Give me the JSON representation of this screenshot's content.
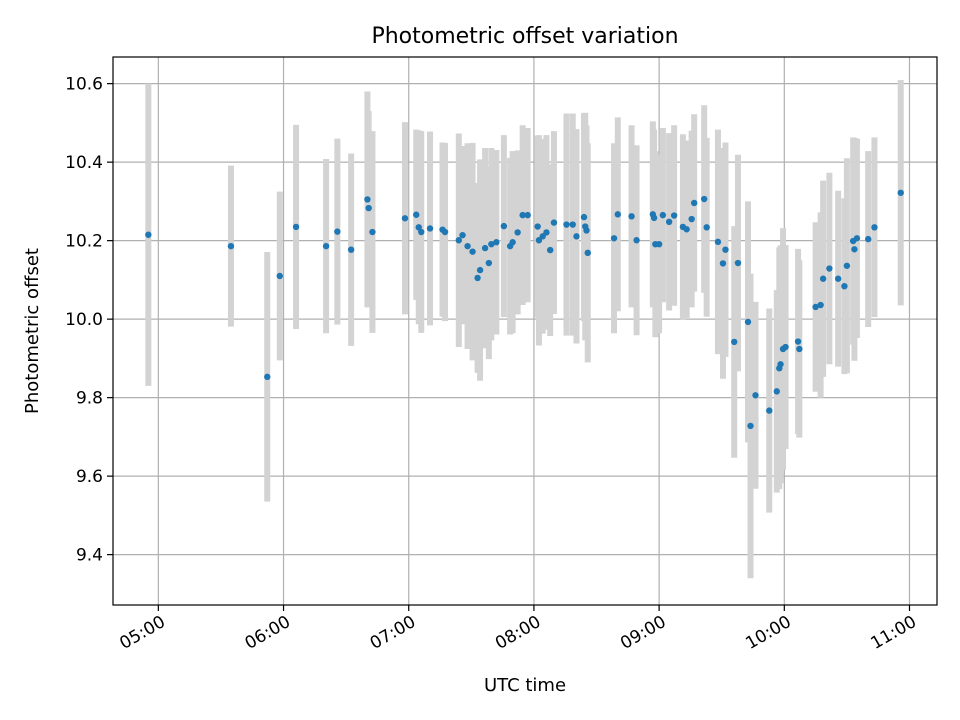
{
  "chart_data": {
    "type": "scatter",
    "title": "Photometric offset variation",
    "xlabel": "UTC time",
    "ylabel": "Photometric offset",
    "x_unit": "hours",
    "xlim": [
      4.6378,
      11.2197
    ],
    "ylim": [
      9.2717,
      10.6679
    ],
    "grid": true,
    "colors": {
      "point": "#1f77b4",
      "errorbar": "#d3d3d3",
      "grid": "#b0b0b0"
    },
    "xticks": [
      {
        "value": 5,
        "label": "05:00"
      },
      {
        "value": 6,
        "label": "06:00"
      },
      {
        "value": 7,
        "label": "07:00"
      },
      {
        "value": 8,
        "label": "08:00"
      },
      {
        "value": 9,
        "label": "09:00"
      },
      {
        "value": 10,
        "label": "10:00"
      },
      {
        "value": 11,
        "label": "11:00"
      }
    ],
    "yticks": [
      {
        "value": 9.4,
        "label": "9.4"
      },
      {
        "value": 9.6,
        "label": "9.6"
      },
      {
        "value": 9.8,
        "label": "9.8"
      },
      {
        "value": 10.0,
        "label": "10.0"
      },
      {
        "value": 10.2,
        "label": "10.2"
      },
      {
        "value": 10.4,
        "label": "10.4"
      },
      {
        "value": 10.6,
        "label": "10.6"
      }
    ],
    "points": [
      [
        4.92,
        10.215,
        0.385
      ],
      [
        5.58,
        10.186,
        0.205
      ],
      [
        5.87,
        9.853,
        0.318
      ],
      [
        5.97,
        10.11,
        0.215
      ],
      [
        6.1,
        10.235,
        0.26
      ],
      [
        6.34,
        10.186,
        0.222
      ],
      [
        6.43,
        10.223,
        0.237
      ],
      [
        6.54,
        10.177,
        0.245
      ],
      [
        6.67,
        10.305,
        0.275
      ],
      [
        6.68,
        10.283,
        0.247
      ],
      [
        6.71,
        10.222,
        0.257
      ],
      [
        6.97,
        10.257,
        0.245
      ],
      [
        7.06,
        10.266,
        0.217
      ],
      [
        7.08,
        10.234,
        0.247
      ],
      [
        7.1,
        10.222,
        0.257
      ],
      [
        7.17,
        10.231,
        0.247
      ],
      [
        7.27,
        10.228,
        0.222
      ],
      [
        7.29,
        10.222,
        0.227
      ],
      [
        7.4,
        10.201,
        0.272
      ],
      [
        7.43,
        10.214,
        0.227
      ],
      [
        7.47,
        10.186,
        0.262
      ],
      [
        7.51,
        10.172,
        0.277
      ],
      [
        7.55,
        10.105,
        0.242
      ],
      [
        7.57,
        10.125,
        0.282
      ],
      [
        7.61,
        10.181,
        0.255
      ],
      [
        7.64,
        10.143,
        0.245
      ],
      [
        7.66,
        10.191,
        0.245
      ],
      [
        7.7,
        10.196,
        0.235
      ],
      [
        7.76,
        10.237,
        0.232
      ],
      [
        7.81,
        10.186,
        0.225
      ],
      [
        7.83,
        10.196,
        0.232
      ],
      [
        7.87,
        10.221,
        0.209
      ],
      [
        7.91,
        10.265,
        0.229
      ],
      [
        7.95,
        10.265,
        0.222
      ],
      [
        8.03,
        10.236,
        0.232
      ],
      [
        8.04,
        10.201,
        0.268
      ],
      [
        8.07,
        10.211,
        0.248
      ],
      [
        8.1,
        10.221,
        0.248
      ],
      [
        8.13,
        10.176,
        0.219
      ],
      [
        8.16,
        10.246,
        0.233
      ],
      [
        8.26,
        10.241,
        0.283
      ],
      [
        8.31,
        10.241,
        0.283
      ],
      [
        8.34,
        10.211,
        0.273
      ],
      [
        8.4,
        10.26,
        0.265
      ],
      [
        8.41,
        10.236,
        0.29
      ],
      [
        8.42,
        10.226,
        0.268
      ],
      [
        8.43,
        10.169,
        0.279
      ],
      [
        8.64,
        10.206,
        0.242
      ],
      [
        8.67,
        10.267,
        0.247
      ],
      [
        8.78,
        10.262,
        0.232
      ],
      [
        8.82,
        10.201,
        0.242
      ],
      [
        8.95,
        10.267,
        0.237
      ],
      [
        8.96,
        10.258,
        0.225
      ],
      [
        8.97,
        10.191,
        0.237
      ],
      [
        9.0,
        10.191,
        0.227
      ],
      [
        9.03,
        10.265,
        0.222
      ],
      [
        9.08,
        10.248,
        0.226
      ],
      [
        9.12,
        10.264,
        0.23
      ],
      [
        9.19,
        10.235,
        0.236
      ],
      [
        9.22,
        10.229,
        0.226
      ],
      [
        9.26,
        10.255,
        0.225
      ],
      [
        9.28,
        10.296,
        0.226
      ],
      [
        9.36,
        10.306,
        0.239
      ],
      [
        9.38,
        10.234,
        0.228
      ],
      [
        9.47,
        10.197,
        0.286
      ],
      [
        9.51,
        10.142,
        0.294
      ],
      [
        9.53,
        10.177,
        0.273
      ],
      [
        9.6,
        9.942,
        0.295
      ],
      [
        9.63,
        10.143,
        0.276
      ],
      [
        9.71,
        9.993,
        0.307
      ],
      [
        9.73,
        9.728,
        0.388
      ],
      [
        9.77,
        9.806,
        0.238
      ],
      [
        9.88,
        9.767,
        0.26
      ],
      [
        9.94,
        9.816,
        0.258
      ],
      [
        9.96,
        9.875,
        0.308
      ],
      [
        9.97,
        9.885,
        0.303
      ],
      [
        9.99,
        9.924,
        0.308
      ],
      [
        10.01,
        9.929,
        0.26
      ],
      [
        10.11,
        9.943,
        0.236
      ],
      [
        10.12,
        9.924,
        0.226
      ],
      [
        10.25,
        10.031,
        0.216
      ],
      [
        10.29,
        10.036,
        0.236
      ],
      [
        10.31,
        10.103,
        0.25
      ],
      [
        10.36,
        10.129,
        0.244
      ],
      [
        10.43,
        10.103,
        0.224
      ],
      [
        10.48,
        10.084,
        0.224
      ],
      [
        10.5,
        10.136,
        0.274
      ],
      [
        10.55,
        10.199,
        0.264
      ],
      [
        10.56,
        10.178,
        0.284
      ],
      [
        10.58,
        10.206,
        0.254
      ],
      [
        10.67,
        10.204,
        0.224
      ],
      [
        10.72,
        10.234,
        0.229
      ],
      [
        10.93,
        10.322,
        0.287
      ]
    ]
  }
}
